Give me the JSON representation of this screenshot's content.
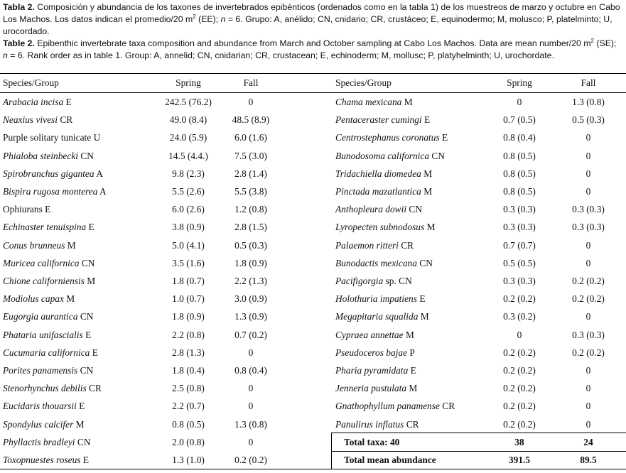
{
  "caption": {
    "es_label": "Tabla 2.",
    "es_text_1": " Composición y abundancia de los taxones de invertebrados epibénticos (ordenados como en la tabla 1) de los muestreos de marzo y octubre en Cabo Los Machos. Los datos indican el promedio/20 m",
    "es_sup": "2",
    "es_text_2": " (EE); ",
    "es_n": "n",
    "es_text_3": " = 6. Grupo: A, anélido; CN, cnidario; CR, crustáceo; E, equinodermo; M, molusco; P, platelminto; U, urocordado.",
    "en_label": "Table 2.",
    "en_text_1": " Epibenthic invertebrate taxa composition and abundance from March and October sampling at Cabo Los Machos. Data are mean number/20 m",
    "en_sup": "2",
    "en_text_2": " (SE); ",
    "en_n": "n",
    "en_text_3": " = 6. Rank order as in table 1. Group: A, annelid; CN, cnidarian; CR, crustacean; E, echinoderm; M, mollusc; P, platyhelminth; U, urochordate."
  },
  "headers": {
    "species": "Species/Group",
    "spring": "Spring",
    "fall": "Fall"
  },
  "left_rows": [
    {
      "name": "Arabacia incisa",
      "group": "E",
      "italic": true,
      "spring": "242.5 (76.2)",
      "fall": "0"
    },
    {
      "name": "Neaxius vivesi",
      "group": "CR",
      "italic": true,
      "spring": "49.0 (8.4)",
      "fall": "48.5 (8.9)"
    },
    {
      "name": "Purple solitary tunicate",
      "group": "U",
      "italic": false,
      "spring": "24.0 (5.9)",
      "fall": "6.0 (1.6)"
    },
    {
      "name": "Phialoba steinbecki",
      "group": "CN",
      "italic": true,
      "spring": "14.5 (4.4.)",
      "fall": "7.5 (3.0)"
    },
    {
      "name": "Spirobranchus gigantea",
      "group": "A",
      "italic": true,
      "spring": "9.8 (2.3)",
      "fall": "2.8 (1.4)"
    },
    {
      "name": "Bispira rugosa monterea",
      "group": "A",
      "italic": true,
      "spring": "5.5 (2.6)",
      "fall": "5.5 (3.8)"
    },
    {
      "name": "Ophiurans",
      "group": "E",
      "italic": false,
      "spring": "6.0 (2.6)",
      "fall": "1.2 (0.8)"
    },
    {
      "name": "Echinaster tenuispina",
      "group": "E",
      "italic": true,
      "spring": "3.8 (0.9)",
      "fall": "2.8 (1.5)"
    },
    {
      "name": "Conus brunneus",
      "group": "M",
      "italic": true,
      "spring": "5.0 (4.1)",
      "fall": "0.5 (0.3)"
    },
    {
      "name": "Muricea californica",
      "group": "CN",
      "italic": true,
      "spring": "3.5 (1.6)",
      "fall": "1.8 (0.9)"
    },
    {
      "name": "Chione californiensis",
      "group": "M",
      "italic": true,
      "spring": "1.8 (0.7)",
      "fall": "2.2 (1.3)"
    },
    {
      "name": "Modiolus capax",
      "group": "M",
      "italic": true,
      "spring": "1.0 (0.7)",
      "fall": "3.0 (0.9)"
    },
    {
      "name": "Eugorgia aurantica",
      "group": "CN",
      "italic": true,
      "spring": "1.8 (0.9)",
      "fall": "1.3 (0.9)"
    },
    {
      "name": "Phataria unifascialis",
      "group": "E",
      "italic": true,
      "spring": "2.2 (0.8)",
      "fall": "0.7 (0.2)"
    },
    {
      "name": "Cucumaria californica",
      "group": "E",
      "italic": true,
      "spring": "2.8 (1.3)",
      "fall": "0"
    },
    {
      "name": "Porites panamensis",
      "group": "CN",
      "italic": true,
      "spring": "1.8 (0.4)",
      "fall": "0.8 (0.4)"
    },
    {
      "name": "Stenorhynchus debilis",
      "group": "CR",
      "italic": true,
      "spring": "2.5 (0.8)",
      "fall": "0"
    },
    {
      "name": "Eucidaris thouarsii",
      "group": "E",
      "italic": true,
      "spring": "2.2 (0.7)",
      "fall": "0"
    },
    {
      "name": "Spondylus calcifer",
      "group": "M",
      "italic": true,
      "spring": "0.8 (0.5)",
      "fall": "1.3 (0.8)"
    },
    {
      "name": "Phyllactis bradleyi",
      "group": "CN",
      "italic": true,
      "spring": "2.0 (0.8)",
      "fall": "0"
    },
    {
      "name": "Toxopnuestes roseus",
      "group": "E",
      "italic": true,
      "spring": "1.3 (1.0)",
      "fall": "0.2 (0.2)"
    }
  ],
  "right_rows": [
    {
      "name": "Chama mexicana",
      "group": "M",
      "italic": true,
      "spring": "0",
      "fall": "1.3 (0.8)"
    },
    {
      "name": "Pentaceraster cumingi",
      "group": "E",
      "italic": true,
      "spring": "0.7 (0.5)",
      "fall": "0.5 (0.3)"
    },
    {
      "name": "Centrostephanus coronatus",
      "group": "E",
      "italic": true,
      "spring": "0.8 (0.4)",
      "fall": "0"
    },
    {
      "name": "Bunodosoma californica",
      "group": "CN",
      "italic": true,
      "spring": "0.8 (0.5)",
      "fall": "0"
    },
    {
      "name": "Tridachiella diomedea",
      "group": "M",
      "italic": true,
      "spring": "0.8 (0.5)",
      "fall": "0"
    },
    {
      "name": "Pinctada mazatlantica",
      "group": "M",
      "italic": true,
      "spring": "0.8 (0.5)",
      "fall": "0"
    },
    {
      "name": "Anthopleura dowii",
      "group": "CN",
      "italic": true,
      "spring": "0.3 (0.3)",
      "fall": "0.3 (0.3)"
    },
    {
      "name": "Lyropecten subnodosus",
      "group": "M",
      "italic": true,
      "spring": "0.3 (0.3)",
      "fall": "0.3 (0.3)"
    },
    {
      "name": "Palaemon ritteri",
      "group": "CR",
      "italic": true,
      "spring": "0.7 (0.7)",
      "fall": "0"
    },
    {
      "name": "Bunodactis mexicana",
      "group": "CN",
      "italic": true,
      "spring": "0.5 (0.5)",
      "fall": "0"
    },
    {
      "name": "Pacifigorgia",
      "group": "sp. CN",
      "italic": true,
      "spring": "0.3 (0.3)",
      "fall": "0.2 (0.2)"
    },
    {
      "name": "Holothuria impatiens",
      "group": "E",
      "italic": true,
      "spring": "0.2 (0.2)",
      "fall": "0.2 (0.2)"
    },
    {
      "name": "Megapitaria squalida",
      "group": "M",
      "italic": true,
      "spring": "0.3 (0.2)",
      "fall": "0"
    },
    {
      "name": "Cypraea annettae",
      "group": "M",
      "italic": true,
      "spring": "0",
      "fall": "0.3 (0.3)"
    },
    {
      "name": "Pseudoceros bajae",
      "group": "P",
      "italic": true,
      "spring": "0.2 (0.2)",
      "fall": "0.2 (0.2)"
    },
    {
      "name": "Pharia pyramidata",
      "group": "E",
      "italic": true,
      "spring": "0.2 (0.2)",
      "fall": "0"
    },
    {
      "name": "Jenneria pustulata",
      "group": "M",
      "italic": true,
      "spring": "0.2 (0.2)",
      "fall": "0"
    },
    {
      "name": "Gnathophyllum panamense",
      "group": "CR",
      "italic": true,
      "spring": "0.2 (0.2)",
      "fall": "0"
    },
    {
      "name": "Panulirus inflatus",
      "group": "CR",
      "italic": true,
      "spring": "0.2 (0.2)",
      "fall": "0"
    }
  ],
  "totals": [
    {
      "label": "Total taxa:  40",
      "spring": "38",
      "fall": "24"
    },
    {
      "label": "Total mean abundance",
      "spring": "391.5",
      "fall": "89.5"
    }
  ]
}
